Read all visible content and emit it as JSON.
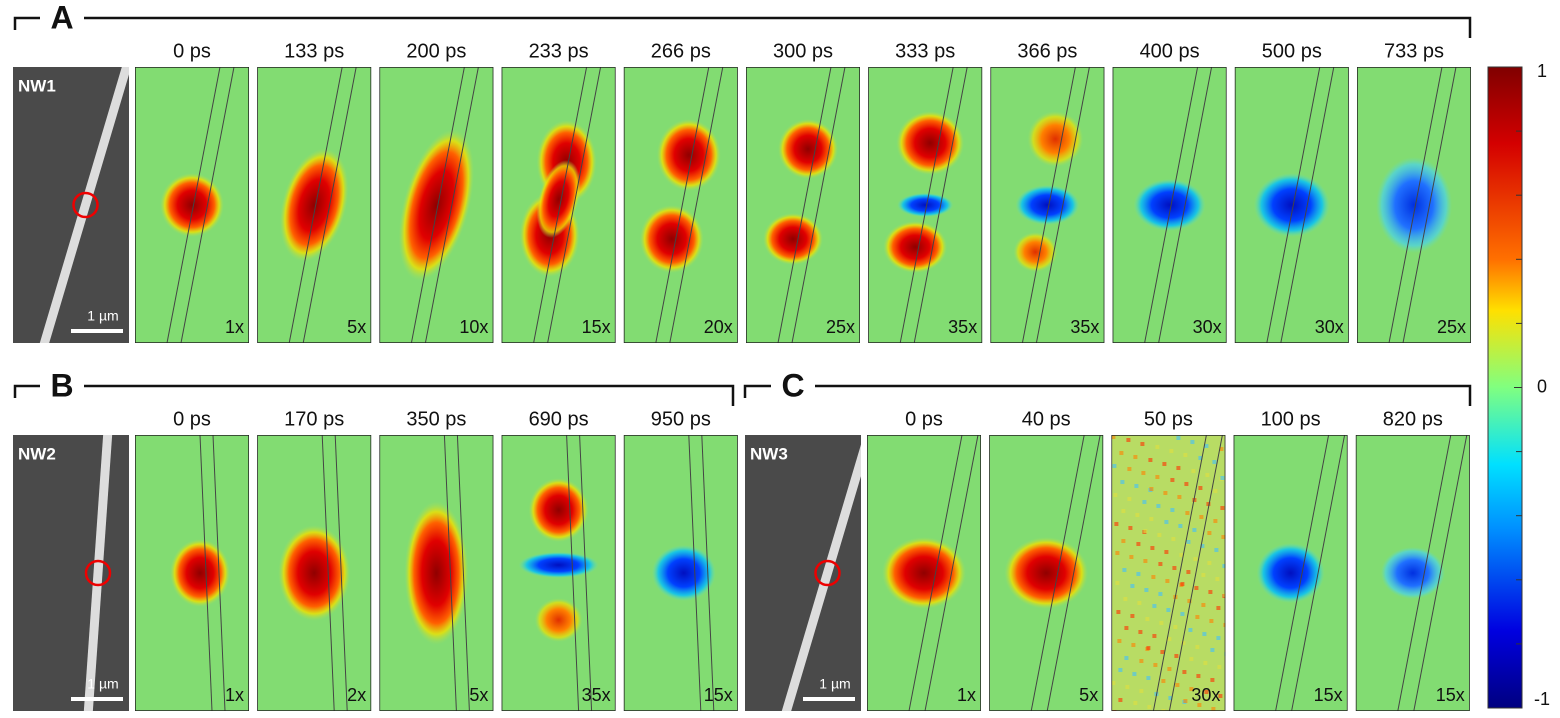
{
  "panels": [
    {
      "label": "A",
      "sample": "NW1",
      "scale_bar": "1 µm",
      "frames": [
        {
          "time": "0 ps",
          "gain": "1x"
        },
        {
          "time": "133 ps",
          "gain": "5x"
        },
        {
          "time": "200 ps",
          "gain": "10x"
        },
        {
          "time": "233 ps",
          "gain": "15x"
        },
        {
          "time": "266 ps",
          "gain": "20x"
        },
        {
          "time": "300 ps",
          "gain": "25x"
        },
        {
          "time": "333 ps",
          "gain": "35x"
        },
        {
          "time": "366 ps",
          "gain": "35x"
        },
        {
          "time": "400 ps",
          "gain": "30x"
        },
        {
          "time": "500 ps",
          "gain": "30x"
        },
        {
          "time": "733 ps",
          "gain": "25x"
        }
      ]
    },
    {
      "label": "B",
      "sample": "NW2",
      "scale_bar": "1 µm",
      "frames": [
        {
          "time": "0 ps",
          "gain": "1x"
        },
        {
          "time": "170 ps",
          "gain": "2x"
        },
        {
          "time": "350 ps",
          "gain": "5x"
        },
        {
          "time": "690 ps",
          "gain": "35x"
        },
        {
          "time": "950 ps",
          "gain": "15x"
        }
      ]
    },
    {
      "label": "C",
      "sample": "NW3",
      "scale_bar": "1 µm",
      "frames": [
        {
          "time": "0 ps",
          "gain": "1x"
        },
        {
          "time": "40 ps",
          "gain": "5x"
        },
        {
          "time": "50 ps",
          "gain": "30x"
        },
        {
          "time": "100 ps",
          "gain": "15x"
        },
        {
          "time": "820 ps",
          "gain": "15x"
        }
      ]
    }
  ],
  "colorbar": {
    "ticks": [
      1,
      0,
      -1
    ]
  }
}
